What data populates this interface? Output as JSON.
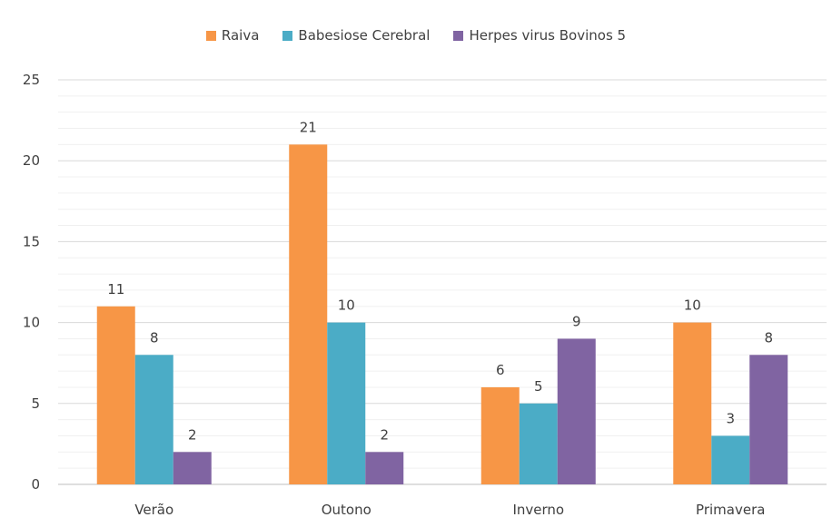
{
  "chart_data": {
    "type": "bar",
    "categories": [
      "Verão",
      "Outono",
      "Inverno",
      "Primavera"
    ],
    "series": [
      {
        "name": "Raiva",
        "values": [
          11,
          21,
          6,
          10
        ],
        "color": "#F79646"
      },
      {
        "name": "Babesiose Cerebral",
        "values": [
          8,
          10,
          5,
          3
        ],
        "color": "#4BACC6"
      },
      {
        "name": "Herpes virus Bovinos 5",
        "values": [
          2,
          2,
          9,
          8
        ],
        "color": "#8064A2"
      }
    ],
    "yticks": [
      "0",
      "5",
      "10",
      "15",
      "20",
      "25"
    ],
    "ylim": [
      0,
      25
    ],
    "legend_position": "top",
    "grid": true
  }
}
